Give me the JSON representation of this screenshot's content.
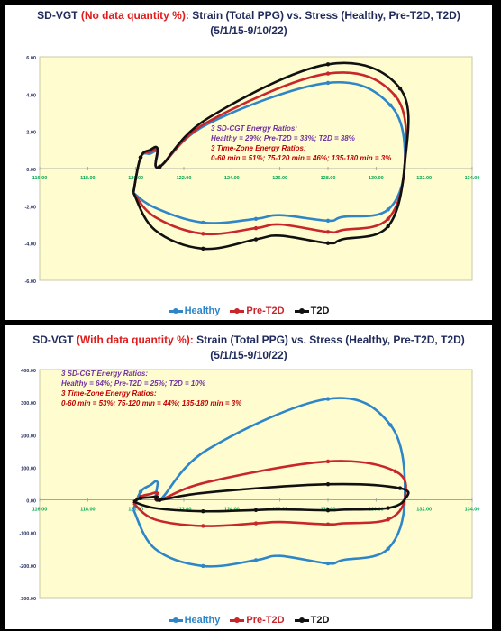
{
  "panels": [
    {
      "title_prefix": "SD-VGT",
      "title_red": "(No data quantity %):",
      "title_rest": "Strain (Total PPG) vs. Stress (Healthy, Pre-T2D, T2D)",
      "subtitle": "(5/1/15-9/10/22)",
      "annotation": {
        "h1": "3 SD-CGT Energy Ratios:",
        "l1": "Healthy = 29%;  Pre-T2D = 33%;  T2D = 38%",
        "h2": "3 Time-Zone Energy Ratios:",
        "l2": "0-60 min = 51%;  75-120 min = 46%;  135-180 min = 3%"
      }
    },
    {
      "title_prefix": "SD-VGT",
      "title_red": "(With data quantity %):",
      "title_rest": "Strain (Total PPG) vs. Stress (Healthy, Pre-T2D, T2D)",
      "subtitle": "(5/1/15-9/10/22)",
      "annotation": {
        "h1": "3 SD-CGT Energy Ratios:",
        "l1": "Healthy = 64%;  Pre-T2D = 25%;  T2D = 10%",
        "h2": "3 Time-Zone Energy Ratios:",
        "l2": "0-60 min = 53%;  75-120 min = 44%;  135-180 min = 3%"
      }
    }
  ],
  "legend": [
    "Healthy",
    "Pre-T2D",
    "T2D"
  ],
  "colors": {
    "healthy": "#2e86c8",
    "pre_t2d": "#c8262b",
    "t2d": "#111111",
    "plot_bg": "#fffdd0",
    "x_tick": "#00a651",
    "y_tick": "#1f2a5a",
    "title": "#1f2a5a"
  },
  "chart_data": [
    {
      "type": "line",
      "xlim": [
        116,
        134
      ],
      "ylim": [
        -6,
        6
      ],
      "x_ticks": [
        "116.00",
        "118.00",
        "120.00",
        "122.00",
        "124.00",
        "126.00",
        "128.00",
        "130.00",
        "132.00",
        "134.00"
      ],
      "y_ticks": [
        "6.00",
        "4.00",
        "2.00",
        "0.00",
        "-2.00",
        "-4.00",
        "-6.00"
      ],
      "series": [
        {
          "name": "Healthy",
          "points": [
            [
              119.9,
              -1.3
            ],
            [
              120.2,
              0.6
            ],
            [
              120.6,
              0.8
            ],
            [
              120.9,
              0.9
            ],
            [
              121.0,
              0.1
            ],
            [
              123.0,
              2.4
            ],
            [
              128.0,
              4.6
            ],
            [
              130.6,
              3.4
            ],
            [
              131.2,
              0.3
            ],
            [
              130.5,
              -2.2
            ],
            [
              128.6,
              -2.6
            ],
            [
              128.0,
              -2.8
            ],
            [
              126.0,
              -2.5
            ],
            [
              125.0,
              -2.7
            ],
            [
              122.8,
              -2.9
            ],
            [
              120.8,
              -2.1
            ],
            [
              119.9,
              -1.3
            ]
          ]
        },
        {
          "name": "Pre-T2D",
          "points": [
            [
              119.9,
              -1.3
            ],
            [
              120.2,
              0.6
            ],
            [
              120.6,
              0.9
            ],
            [
              120.9,
              1.0
            ],
            [
              121.0,
              0.1
            ],
            [
              123.0,
              2.5
            ],
            [
              128.0,
              5.1
            ],
            [
              130.8,
              3.9
            ],
            [
              131.2,
              0.3
            ],
            [
              130.5,
              -2.7
            ],
            [
              128.6,
              -3.3
            ],
            [
              128.0,
              -3.4
            ],
            [
              126.0,
              -3.0
            ],
            [
              125.0,
              -3.2
            ],
            [
              122.8,
              -3.5
            ],
            [
              120.8,
              -2.6
            ],
            [
              119.9,
              -1.3
            ]
          ]
        },
        {
          "name": "T2D",
          "points": [
            [
              119.9,
              -1.3
            ],
            [
              120.2,
              0.6
            ],
            [
              120.6,
              1.0
            ],
            [
              120.9,
              1.1
            ],
            [
              121.0,
              0.1
            ],
            [
              123.0,
              2.7
            ],
            [
              128.0,
              5.6
            ],
            [
              131.0,
              4.3
            ],
            [
              131.2,
              0.3
            ],
            [
              130.5,
              -3.1
            ],
            [
              128.6,
              -3.8
            ],
            [
              128.0,
              -4.0
            ],
            [
              126.0,
              -3.6
            ],
            [
              125.0,
              -3.8
            ],
            [
              122.8,
              -4.3
            ],
            [
              120.8,
              -3.3
            ],
            [
              119.9,
              -1.3
            ]
          ]
        }
      ]
    },
    {
      "type": "line",
      "xlim": [
        116,
        134
      ],
      "ylim": [
        -300,
        400
      ],
      "x_ticks": [
        "116.00",
        "118.00",
        "120.00",
        "122.00",
        "124.00",
        "126.00",
        "128.00",
        "130.00",
        "132.00",
        "134.00"
      ],
      "y_ticks": [
        "400.00",
        "300.00",
        "200.00",
        "100.00",
        "0.00",
        "-100.00",
        "-200.00",
        "-300.00"
      ],
      "series": [
        {
          "name": "Healthy",
          "points": [
            [
              119.9,
              -30
            ],
            [
              120.2,
              25
            ],
            [
              120.6,
              45
            ],
            [
              120.9,
              55
            ],
            [
              121.0,
              0
            ],
            [
              123.0,
              155
            ],
            [
              128.0,
              310
            ],
            [
              130.6,
              230
            ],
            [
              131.2,
              10
            ],
            [
              130.5,
              -150
            ],
            [
              128.6,
              -185
            ],
            [
              128.0,
              -195
            ],
            [
              126.0,
              -172
            ],
            [
              125.0,
              -185
            ],
            [
              122.8,
              -203
            ],
            [
              120.8,
              -150
            ],
            [
              119.9,
              -30
            ]
          ]
        },
        {
          "name": "Pre-T2D",
          "points": [
            [
              119.9,
              -10
            ],
            [
              120.2,
              10
            ],
            [
              120.6,
              18
            ],
            [
              120.9,
              22
            ],
            [
              121.0,
              0
            ],
            [
              123.0,
              55
            ],
            [
              128.0,
              118
            ],
            [
              130.8,
              88
            ],
            [
              131.2,
              5
            ],
            [
              130.5,
              -60
            ],
            [
              128.6,
              -72
            ],
            [
              128.0,
              -75
            ],
            [
              126.0,
              -68
            ],
            [
              125.0,
              -72
            ],
            [
              122.8,
              -80
            ],
            [
              120.8,
              -60
            ],
            [
              119.9,
              -10
            ]
          ]
        },
        {
          "name": "T2D",
          "points": [
            [
              119.9,
              -5
            ],
            [
              120.2,
              5
            ],
            [
              120.6,
              8
            ],
            [
              120.9,
              10
            ],
            [
              121.0,
              0
            ],
            [
              123.0,
              23
            ],
            [
              128.0,
              48
            ],
            [
              131.0,
              36
            ],
            [
              131.2,
              2
            ],
            [
              130.5,
              -25
            ],
            [
              128.6,
              -30
            ],
            [
              128.0,
              -32
            ],
            [
              126.0,
              -29
            ],
            [
              125.0,
              -31
            ],
            [
              122.8,
              -35
            ],
            [
              120.8,
              -25
            ],
            [
              119.9,
              -5
            ]
          ]
        }
      ]
    }
  ]
}
